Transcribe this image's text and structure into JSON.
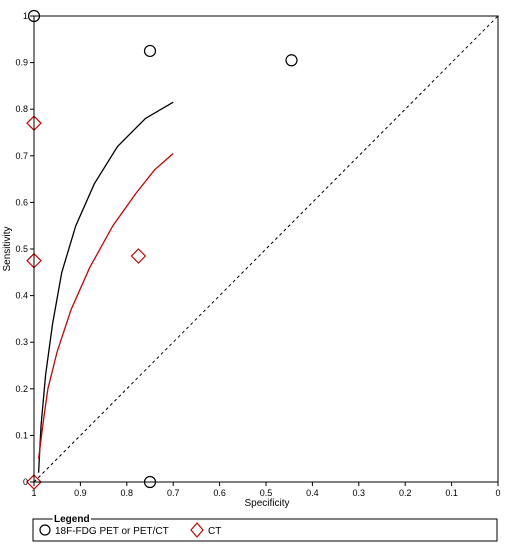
{
  "chart_data": {
    "type": "scatter",
    "title": "",
    "xlabel": "Specificity",
    "ylabel": "Sensitivity",
    "x_reversed": true,
    "xlim": [
      1,
      0
    ],
    "ylim": [
      0,
      1
    ],
    "xticks": [
      {
        "value": 1,
        "label": "1"
      },
      {
        "value": 0.9,
        "label": "0.9"
      },
      {
        "value": 0.8,
        "label": "0.8"
      },
      {
        "value": 0.7,
        "label": "0.7"
      },
      {
        "value": 0.6,
        "label": "0.6"
      },
      {
        "value": 0.5,
        "label": "0.5"
      },
      {
        "value": 0.4,
        "label": "0.4"
      },
      {
        "value": 0.3,
        "label": "0.3"
      },
      {
        "value": 0.2,
        "label": "0.2"
      },
      {
        "value": 0.1,
        "label": "0.1"
      },
      {
        "value": 0,
        "label": "0"
      }
    ],
    "yticks": [
      {
        "value": 0,
        "label": "0"
      },
      {
        "value": 0.1,
        "label": "0.1"
      },
      {
        "value": 0.2,
        "label": "0.2"
      },
      {
        "value": 0.3,
        "label": "0.3"
      },
      {
        "value": 0.4,
        "label": "0.4"
      },
      {
        "value": 0.5,
        "label": "0.5"
      },
      {
        "value": 0.6,
        "label": "0.6"
      },
      {
        "value": 0.7,
        "label": "0.7"
      },
      {
        "value": 0.8,
        "label": "0.8"
      },
      {
        "value": 0.9,
        "label": "0.9"
      },
      {
        "value": 1,
        "label": "1"
      }
    ],
    "grid": false,
    "legend_position": "bottom",
    "legend": {
      "title": "Legend",
      "entries": [
        {
          "label": "18F-FDG PET or PET/CT",
          "marker": "circle",
          "color": "#000000"
        },
        {
          "label": "CT",
          "marker": "diamond",
          "color": "#cc0000"
        }
      ]
    },
    "reference_line": {
      "style": "dashed",
      "color": "#000000",
      "points": [
        [
          1,
          0
        ],
        [
          0,
          1
        ]
      ]
    },
    "series": [
      {
        "name": "18F-FDG PET or PET/CT",
        "marker": "circle",
        "color": "#000000",
        "points": [
          {
            "x": 1.0,
            "y": 1.0
          },
          {
            "x": 0.75,
            "y": 0.925
          },
          {
            "x": 0.445,
            "y": 0.905
          },
          {
            "x": 0.75,
            "y": 0.0
          }
        ],
        "sroc_curve": [
          {
            "x": 0.99,
            "y": 0.02
          },
          {
            "x": 0.985,
            "y": 0.12
          },
          {
            "x": 0.975,
            "y": 0.23
          },
          {
            "x": 0.96,
            "y": 0.34
          },
          {
            "x": 0.94,
            "y": 0.45
          },
          {
            "x": 0.91,
            "y": 0.55
          },
          {
            "x": 0.87,
            "y": 0.64
          },
          {
            "x": 0.82,
            "y": 0.72
          },
          {
            "x": 0.76,
            "y": 0.78
          },
          {
            "x": 0.7,
            "y": 0.815
          }
        ]
      },
      {
        "name": "CT",
        "marker": "diamond",
        "color": "#cc0000",
        "points": [
          {
            "x": 1.0,
            "y": 0.77
          },
          {
            "x": 1.0,
            "y": 0.475
          },
          {
            "x": 0.775,
            "y": 0.485
          },
          {
            "x": 1.0,
            "y": 0.0
          }
        ],
        "sroc_curve": [
          {
            "x": 0.99,
            "y": 0.05
          },
          {
            "x": 0.98,
            "y": 0.13
          },
          {
            "x": 0.97,
            "y": 0.2
          },
          {
            "x": 0.95,
            "y": 0.28
          },
          {
            "x": 0.92,
            "y": 0.37
          },
          {
            "x": 0.88,
            "y": 0.46
          },
          {
            "x": 0.83,
            "y": 0.55
          },
          {
            "x": 0.78,
            "y": 0.62
          },
          {
            "x": 0.74,
            "y": 0.67
          },
          {
            "x": 0.7,
            "y": 0.705
          }
        ]
      }
    ]
  }
}
